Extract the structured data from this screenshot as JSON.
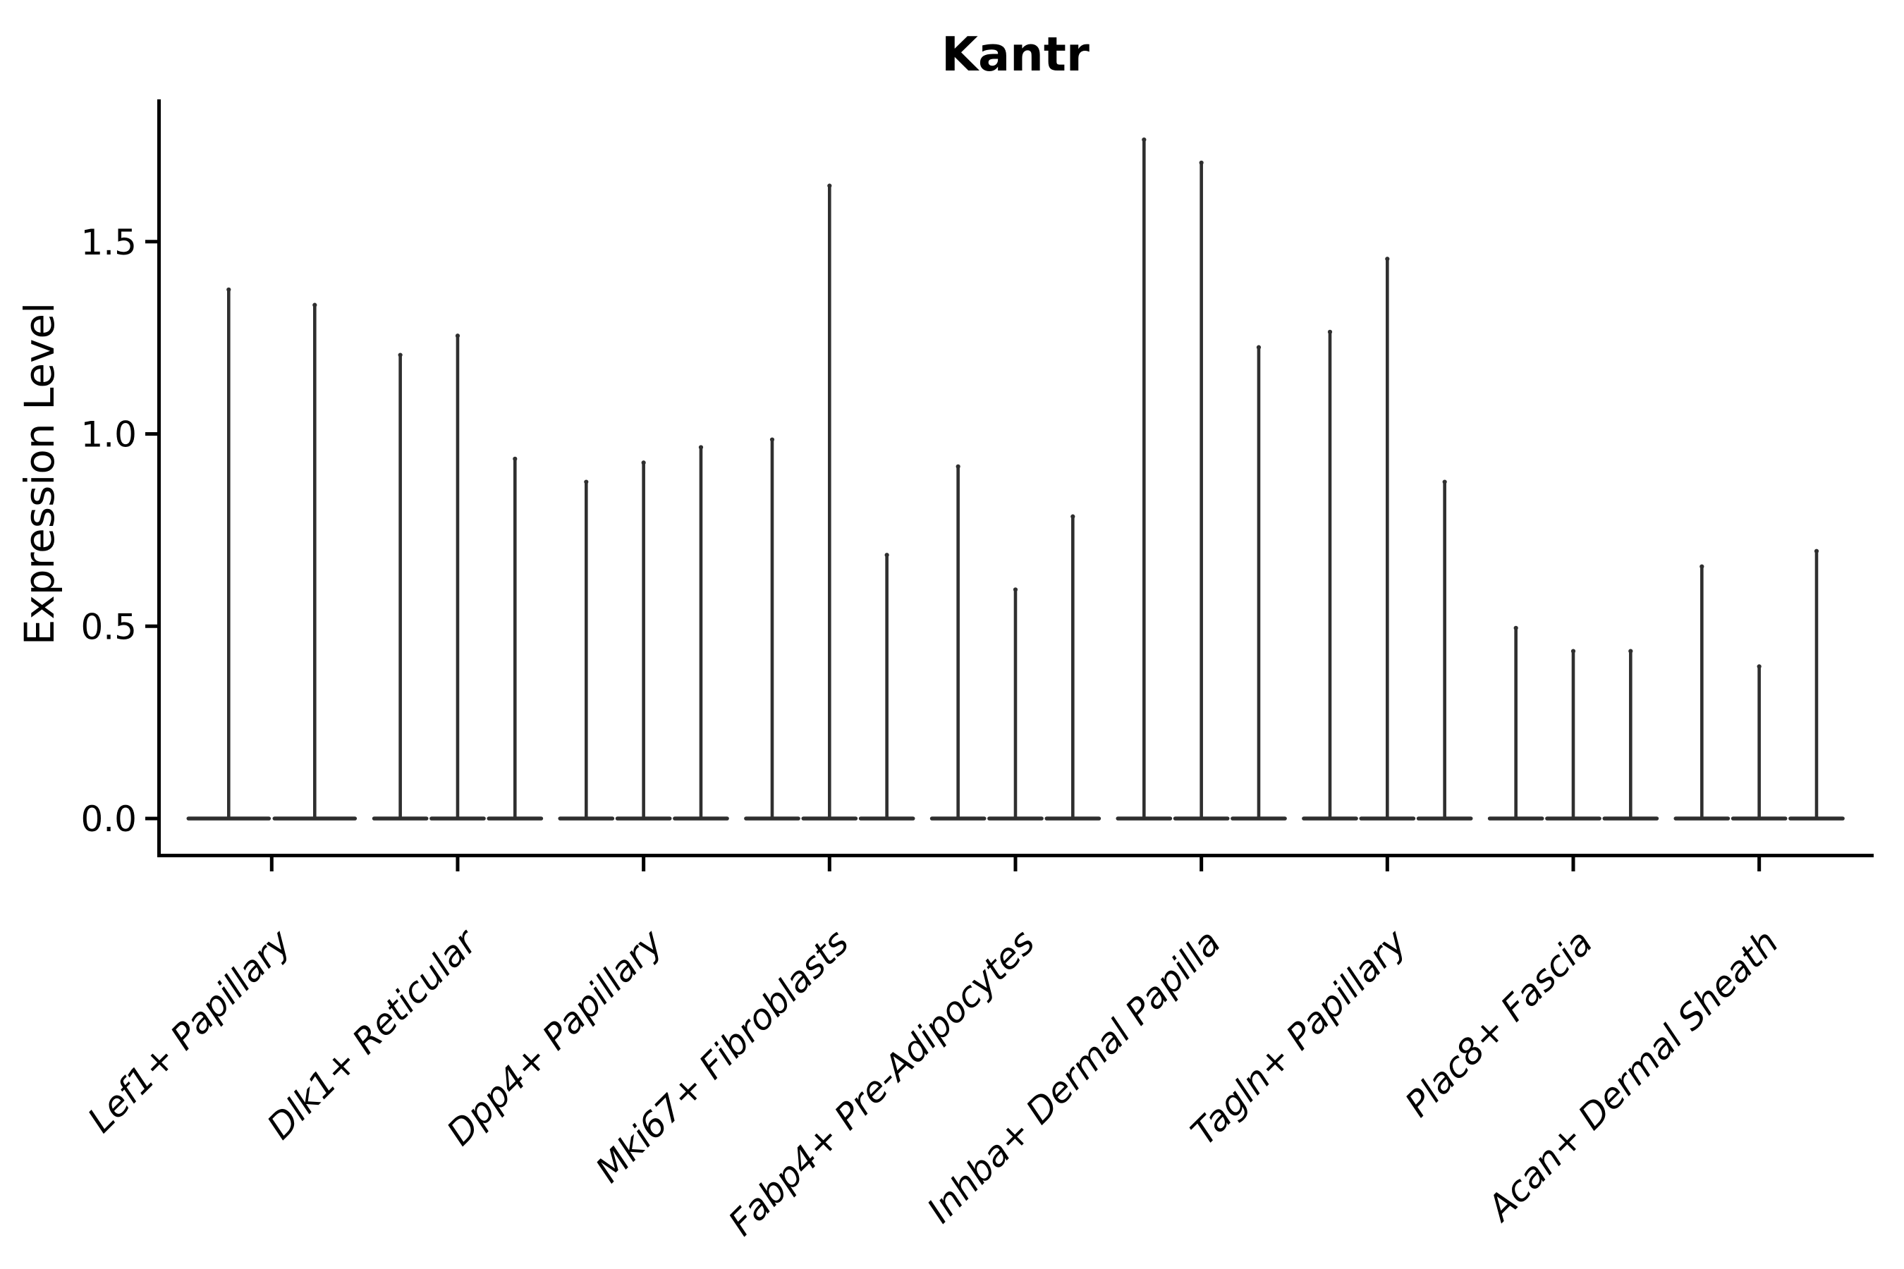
{
  "title": "Kantr",
  "colors": {
    "violin": "#2f2f2f",
    "axis": "#000000",
    "text": "#000000",
    "background": "#ffffff"
  },
  "chart_data": {
    "type": "violin",
    "title": "Kantr",
    "xlabel": "",
    "ylabel": "Expression Level",
    "ylim": [
      -0.1,
      1.87
    ],
    "yticks": [
      0.0,
      0.5,
      1.0,
      1.5
    ],
    "ytick_labels": [
      "0.0",
      "0.5",
      "1.0",
      "1.5"
    ],
    "grid": false,
    "legend": "none",
    "x_tick_label_rotation_deg": 45,
    "categories": [
      "Lef1+ Papillary",
      "Dlk1+ Reticular",
      "Dpp4+ Papillary",
      "Mki67+ Fibroblasts",
      "Fabp4+ Pre-Adipocytes",
      "Inhba+ Dermal Papilla",
      "Tagln+ Papillary",
      "Plac8+ Fascia",
      "Acan+ Dermal Sheath"
    ],
    "groups": [
      {
        "label": "Lef1+ Papillary",
        "violin_maxima": [
          1.38,
          1.34
        ]
      },
      {
        "label": "Dlk1+ Reticular",
        "violin_maxima": [
          1.21,
          1.26,
          0.94
        ]
      },
      {
        "label": "Dpp4+ Papillary",
        "violin_maxima": [
          0.88,
          0.93,
          0.97
        ]
      },
      {
        "label": "Mki67+ Fibroblasts",
        "violin_maxima": [
          0.99,
          1.65,
          0.69
        ]
      },
      {
        "label": "Fabp4+ Pre-Adipocytes",
        "violin_maxima": [
          0.92,
          0.6,
          0.79
        ]
      },
      {
        "label": "Inhba+ Dermal Papilla",
        "violin_maxima": [
          1.77,
          1.71,
          1.23
        ]
      },
      {
        "label": "Tagln+ Papillary",
        "violin_maxima": [
          1.27,
          1.46,
          0.88
        ]
      },
      {
        "label": "Plac8+ Fascia",
        "violin_maxima": [
          0.5,
          0.44,
          0.44
        ]
      },
      {
        "label": "Acan+ Dermal Sheath",
        "violin_maxima": [
          0.66,
          0.4,
          0.7
        ]
      }
    ],
    "violin_shape_note": "each violin is a near-zero-width spike rising from a flat wide base at expression 0"
  }
}
